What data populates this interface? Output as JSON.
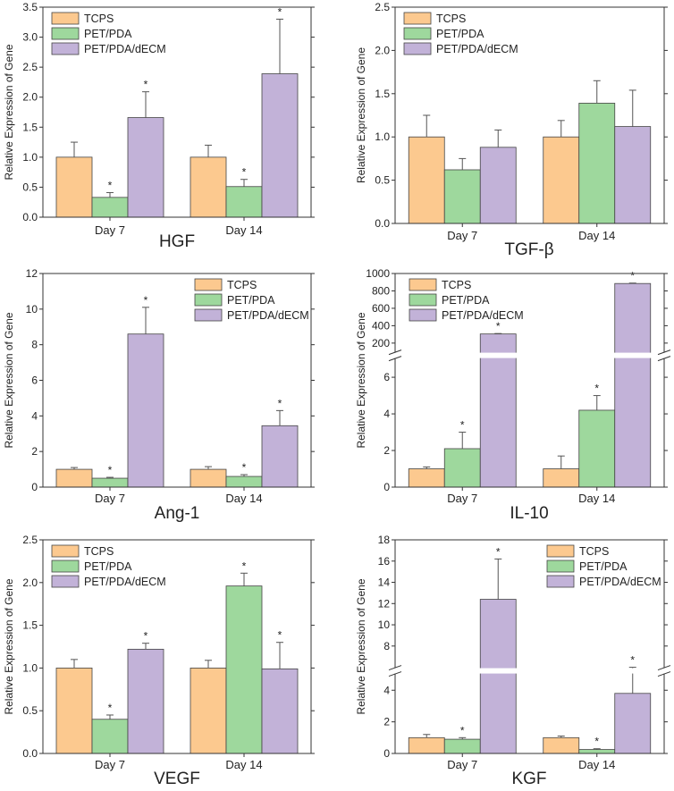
{
  "colors": {
    "TCPS": "#fcc98f",
    "PET/PDA": "#9ed89d",
    "PET/PDA/dECM": "#c2b2d8"
  },
  "chart_data": [
    {
      "type": "bar",
      "title": "HGF",
      "ylabel": "Relative Expression of Gene",
      "categories": [
        "Day 7",
        "Day 14"
      ],
      "ylim": [
        0,
        3.5
      ],
      "yticks": [
        "0.0",
        "0.5",
        "1.0",
        "1.5",
        "2.0",
        "2.5",
        "3.0",
        "3.5"
      ],
      "series": [
        {
          "name": "TCPS",
          "values": [
            1.0,
            1.0
          ],
          "errors": [
            0.25,
            0.2
          ],
          "significant": [
            false,
            false
          ]
        },
        {
          "name": "PET/PDA",
          "values": [
            0.33,
            0.51
          ],
          "errors": [
            0.08,
            0.12
          ],
          "significant": [
            true,
            true
          ]
        },
        {
          "name": "PET/PDA/dECM",
          "values": [
            1.66,
            2.39
          ],
          "errors": [
            0.43,
            0.91
          ],
          "significant": [
            true,
            true
          ]
        }
      ],
      "star": "*"
    },
    {
      "type": "bar",
      "title": "TGF-β",
      "ylabel": "Relative Expression of Gene",
      "categories": [
        "Day 7",
        "Day 14"
      ],
      "ylim": [
        0,
        2.5
      ],
      "yticks": [
        "0.0",
        "0.5",
        "1.0",
        "1.5",
        "2.0",
        "2.5"
      ],
      "series": [
        {
          "name": "TCPS",
          "values": [
            1.0,
            1.0
          ],
          "errors": [
            0.25,
            0.19
          ],
          "significant": [
            false,
            false
          ]
        },
        {
          "name": "PET/PDA",
          "values": [
            0.62,
            1.39
          ],
          "errors": [
            0.13,
            0.26
          ],
          "significant": [
            false,
            false
          ]
        },
        {
          "name": "PET/PDA/dECM",
          "values": [
            0.88,
            1.12
          ],
          "errors": [
            0.2,
            0.42
          ],
          "significant": [
            false,
            false
          ]
        }
      ],
      "star": "*"
    },
    {
      "type": "bar",
      "title": "Ang-1",
      "ylabel": "Relative Expression of Gene",
      "categories": [
        "Day 7",
        "Day 14"
      ],
      "ylim": [
        0,
        12
      ],
      "yticks": [
        "0",
        "2",
        "4",
        "6",
        "8",
        "10",
        "12"
      ],
      "series": [
        {
          "name": "TCPS",
          "values": [
            1.0,
            1.0
          ],
          "errors": [
            0.1,
            0.15
          ],
          "significant": [
            false,
            false
          ]
        },
        {
          "name": "PET/PDA",
          "values": [
            0.5,
            0.6
          ],
          "errors": [
            0.05,
            0.1
          ],
          "significant": [
            true,
            true
          ]
        },
        {
          "name": "PET/PDA/dECM",
          "values": [
            8.6,
            3.45
          ],
          "errors": [
            1.5,
            0.85
          ],
          "significant": [
            true,
            true
          ]
        }
      ],
      "star": "*"
    },
    {
      "type": "bar",
      "title": "IL-10",
      "ylabel": "Relative Expression of Gene",
      "categories": [
        "Day 7",
        "Day 14"
      ],
      "ylim": [
        0,
        1000
      ],
      "axis_break": {
        "lower": [
          0,
          7
        ],
        "upper": [
          100,
          1000
        ]
      },
      "yticks_lower": [
        "0",
        "2",
        "4",
        "6"
      ],
      "yticks_upper": [
        "200",
        "400",
        "600",
        "800",
        "1000"
      ],
      "series": [
        {
          "name": "TCPS",
          "values": [
            1.0,
            1.0
          ],
          "errors": [
            0.1,
            0.7
          ],
          "significant": [
            false,
            false
          ]
        },
        {
          "name": "PET/PDA",
          "values": [
            2.1,
            4.2
          ],
          "errors": [
            0.9,
            0.8
          ],
          "significant": [
            true,
            true
          ]
        },
        {
          "name": "PET/PDA/dECM",
          "values": [
            305,
            885
          ],
          "errors": [
            5,
            5
          ],
          "significant": [
            true,
            true
          ]
        }
      ],
      "star": "*"
    },
    {
      "type": "bar",
      "title": "VEGF",
      "ylabel": "Relative Expression of Gene",
      "categories": [
        "Day 7",
        "Day 14"
      ],
      "ylim": [
        0,
        2.5
      ],
      "yticks": [
        "0.0",
        "0.5",
        "1.0",
        "1.5",
        "2.0",
        "2.5"
      ],
      "series": [
        {
          "name": "TCPS",
          "values": [
            1.0,
            1.0
          ],
          "errors": [
            0.1,
            0.09
          ],
          "significant": [
            false,
            false
          ]
        },
        {
          "name": "PET/PDA",
          "values": [
            0.4,
            1.96
          ],
          "errors": [
            0.05,
            0.15
          ],
          "significant": [
            true,
            true
          ]
        },
        {
          "name": "PET/PDA/dECM",
          "values": [
            1.22,
            0.99
          ],
          "errors": [
            0.07,
            0.31
          ],
          "significant": [
            true,
            true
          ]
        }
      ],
      "star": "*"
    },
    {
      "type": "bar",
      "title": "KGF",
      "ylabel": "Relative Expression of Gene",
      "categories": [
        "Day 7",
        "Day 14"
      ],
      "ylim": [
        0,
        18
      ],
      "axis_break": {
        "lower": [
          0,
          5
        ],
        "upper": [
          6,
          18
        ]
      },
      "yticks_lower": [
        "0",
        "2",
        "4"
      ],
      "yticks_upper": [
        "8",
        "10",
        "12",
        "14",
        "16",
        "18"
      ],
      "series": [
        {
          "name": "TCPS",
          "values": [
            1.0,
            1.0
          ],
          "errors": [
            0.2,
            0.1
          ],
          "significant": [
            false,
            false
          ]
        },
        {
          "name": "PET/PDA",
          "values": [
            0.9,
            0.25
          ],
          "errors": [
            0.1,
            0.05
          ],
          "significant": [
            true,
            true
          ]
        },
        {
          "name": "PET/PDA/dECM",
          "values": [
            12.4,
            3.8
          ],
          "errors": [
            3.8,
            1.7
          ],
          "significant": [
            true,
            true
          ]
        }
      ],
      "star": "*"
    }
  ]
}
